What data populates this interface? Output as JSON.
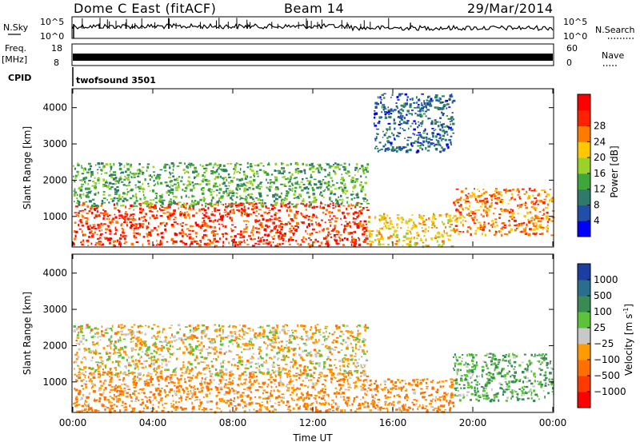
{
  "header": {
    "title": "Dome C East (fitACF)",
    "beam": "Beam 14",
    "date": "29/Mar/2014"
  },
  "panels": {
    "nsky_label": "N.Sky",
    "nsky_ticks": [
      "10^5",
      "10^0"
    ],
    "nsearch_label": "N.Search",
    "nsearch_ticks": [
      "10^5",
      "10^0"
    ],
    "freq_label": "Freq.",
    "freq_unit": "[MHz]",
    "freq_ticks": [
      "18",
      "8"
    ],
    "nave_label": "Nave",
    "nave_ticks": [
      "60",
      "0"
    ],
    "cpid_label": "CPID",
    "cpid_value": "twofsound 3501"
  },
  "chart_data": [
    {
      "type": "heatmap",
      "name": "power",
      "ylabel": "Slant Range [km]",
      "xlabel": "Time UT",
      "x_ticks": [
        "00:00",
        "04:00",
        "08:00",
        "12:00",
        "16:00",
        "20:00",
        "00:00"
      ],
      "x_hours": [
        0,
        4,
        8,
        12,
        16,
        20,
        24
      ],
      "ylim": [
        180,
        4500
      ],
      "y_ticks": [
        1000,
        2000,
        3000,
        4000
      ],
      "colorbar": {
        "label": "Power [dB]",
        "ticks": [
          4,
          8,
          12,
          16,
          20,
          24,
          28
        ],
        "colors": [
          "#0000ff",
          "#1f4fa8",
          "#2e7b6b",
          "#3fa63a",
          "#9ad22a",
          "#ffc800",
          "#ff7a00",
          "#ff2200",
          "#ff0000"
        ]
      },
      "regions": [
        {
          "t0": 0.0,
          "t1": 14.7,
          "r0": 200,
          "r1": 1400,
          "value": 28
        },
        {
          "t0": 0.0,
          "t1": 14.7,
          "r0": 1300,
          "r1": 2500,
          "value": 12
        },
        {
          "t0": 14.7,
          "t1": 19.0,
          "r0": 200,
          "r1": 1100,
          "value": 20
        },
        {
          "t0": 19.0,
          "t1": 24.0,
          "r0": 500,
          "r1": 1800,
          "value": 24
        },
        {
          "t0": 15.0,
          "t1": 19.0,
          "r0": 2800,
          "r1": 4400,
          "value": 6
        }
      ]
    },
    {
      "type": "heatmap",
      "name": "velocity",
      "ylabel": "Slant Range [km]",
      "xlabel": "Time UT",
      "x_ticks": [
        "00:00",
        "04:00",
        "08:00",
        "12:00",
        "16:00",
        "20:00",
        "00:00"
      ],
      "x_hours": [
        0,
        4,
        8,
        12,
        16,
        20,
        24
      ],
      "ylim": [
        180,
        4500
      ],
      "y_ticks": [
        1000,
        2000,
        3000,
        4000
      ],
      "colorbar": {
        "label": "Velocity [m s",
        "label_sup": "-1",
        "label_end": "]",
        "ticks": [
          "1000",
          "500",
          "100",
          "25",
          "−25",
          "−100",
          "−500",
          "−1000"
        ],
        "colors": [
          "#1b3fa0",
          "#2a6e8e",
          "#3a8a55",
          "#5cc23a",
          "#c8c8c8",
          "#ff9a00",
          "#ff7000",
          "#ff3a00",
          "#ff0000"
        ]
      },
      "regions": [
        {
          "t0": 0.0,
          "t1": 14.7,
          "r0": 200,
          "r1": 1300,
          "value": -100
        },
        {
          "t0": 0.0,
          "t1": 14.7,
          "r0": 1200,
          "r1": 2600,
          "value": -25
        },
        {
          "t0": 14.7,
          "t1": 19.0,
          "r0": 200,
          "r1": 1100,
          "value": -100
        },
        {
          "t0": 19.0,
          "t1": 24.0,
          "r0": 500,
          "r1": 1800,
          "value": 100
        }
      ]
    }
  ]
}
